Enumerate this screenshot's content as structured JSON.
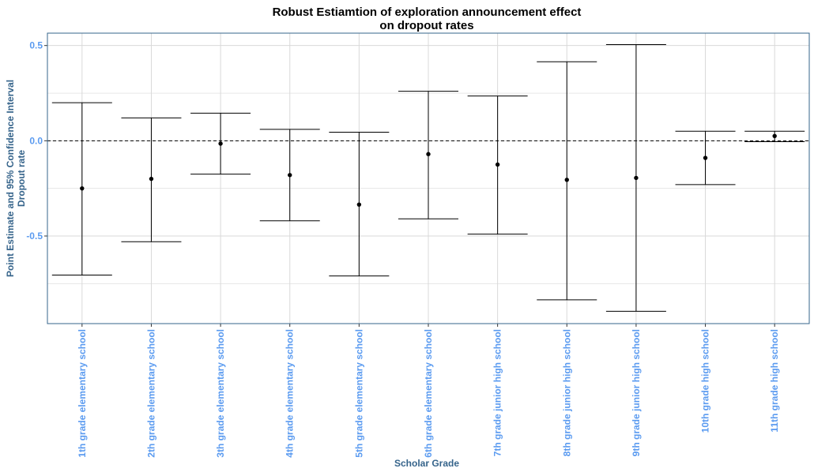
{
  "chart_data": {
    "type": "errorbar",
    "title": "Robust Estiamtion of exploration announcement effect",
    "subtitle": "on dropout rates",
    "xlabel": "Scholar Grade",
    "ylabel_line1": "Point Estimate and 95% Confidence Interval",
    "ylabel_line2": "Dropout rate",
    "ylim": [
      -0.96,
      0.565
    ],
    "yticks": [
      0.5,
      0.0,
      -0.5
    ],
    "ytick_labels": [
      "0.5",
      "0.0",
      "-0.5"
    ],
    "reference_line": 0.0,
    "grid": true,
    "categories": [
      "1th grade elementary school",
      "2th grade elementary school",
      "3th grade elementary school",
      "4th grade elementary school",
      "5th grade elementary school",
      "6th grade elementary school",
      "7th grade junior high school",
      "8th grade junior high school",
      "9th grade junior high school",
      "10th grade high school",
      "11th grade high school"
    ],
    "estimates": [
      -0.25,
      -0.2,
      -0.015,
      -0.18,
      -0.335,
      -0.07,
      -0.125,
      -0.205,
      -0.195,
      -0.09,
      0.025
    ],
    "ci_lower": [
      -0.705,
      -0.53,
      -0.175,
      -0.42,
      -0.71,
      -0.41,
      -0.49,
      -0.835,
      -0.895,
      -0.23,
      -0.005
    ],
    "ci_upper": [
      0.2,
      0.12,
      0.145,
      0.06,
      0.045,
      0.26,
      0.235,
      0.415,
      0.505,
      0.05,
      0.05
    ],
    "colors": {
      "title": "#000000",
      "axis_title": "#36648B",
      "tick_label": "#5B9BF0",
      "grid": "#D9D9D9",
      "panel_border": "#36648B",
      "mark": "#000000"
    }
  }
}
